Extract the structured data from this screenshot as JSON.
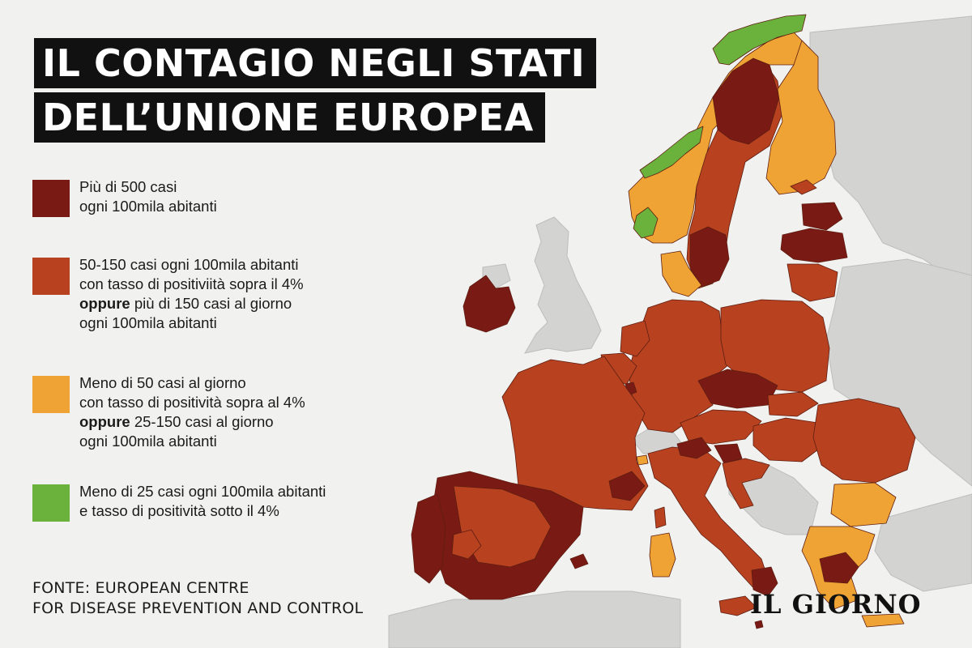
{
  "title": {
    "line1": "IL CONTAGIO NEGLI STATI",
    "line2": "DELL’UNIONE EUROPEA"
  },
  "colors": {
    "dark_red": "#7a1a14",
    "red": "#b8421f",
    "orange": "#efa334",
    "green": "#6ab23b",
    "non_eu": "#d3d3d1",
    "sea": "#f1f1ef",
    "border": "#5e1d12"
  },
  "legend": [
    {
      "color": "#7a1a14",
      "lines": [
        {
          "pre": "",
          "bold": "",
          "post": "Più di 500 casi"
        },
        {
          "pre": "",
          "bold": "",
          "post": "ogni 100mila abitanti"
        }
      ]
    },
    {
      "color": "#b8421f",
      "lines": [
        {
          "pre": "",
          "bold": "",
          "post": "50-150 casi ogni 100mila abitanti"
        },
        {
          "pre": "",
          "bold": "",
          "post": "con tasso di positiviità sopra il 4%"
        },
        {
          "pre": "",
          "bold": "oppure",
          "post": " più di 150 casi al giorno"
        },
        {
          "pre": "",
          "bold": "",
          "post": "ogni 100mila abitanti"
        }
      ]
    },
    {
      "color": "#efa334",
      "lines": [
        {
          "pre": "",
          "bold": "",
          "post": "Meno di 50 casi al giorno"
        },
        {
          "pre": "",
          "bold": "",
          "post": "con tasso di positività sopra al 4%"
        },
        {
          "pre": "",
          "bold": "oppure",
          "post": " 25-150 casi al giorno"
        },
        {
          "pre": "",
          "bold": "",
          "post": "ogni 100mila abitanti"
        }
      ]
    },
    {
      "color": "#6ab23b",
      "lines": [
        {
          "pre": "",
          "bold": "",
          "post": "Meno di 25 casi ogni 100mila abitanti"
        },
        {
          "pre": "",
          "bold": "",
          "post": "e tasso di positività sotto il 4%"
        }
      ]
    }
  ],
  "source": {
    "line1": "FONTE: EUROPEAN CENTRE",
    "line2": "FOR DISEASE PREVENTION AND CONTROL"
  },
  "logo": "IL GIORNO"
}
